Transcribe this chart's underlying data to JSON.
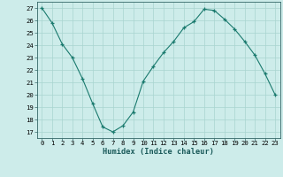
{
  "x": [
    0,
    1,
    2,
    3,
    4,
    5,
    6,
    7,
    8,
    9,
    10,
    11,
    12,
    13,
    14,
    15,
    16,
    17,
    18,
    19,
    20,
    21,
    22,
    23
  ],
  "y": [
    27,
    25.8,
    24.1,
    23.0,
    21.3,
    19.3,
    17.4,
    17.0,
    17.5,
    18.6,
    21.1,
    22.3,
    23.4,
    24.3,
    25.4,
    25.9,
    26.9,
    26.8,
    26.1,
    25.3,
    24.3,
    23.2,
    21.7,
    20.0
  ],
  "line_color": "#1a7a6e",
  "marker": "+",
  "bg_color": "#cdecea",
  "grid_color": "#a8d5d0",
  "xlabel": "Humidex (Indice chaleur)",
  "ylabel_ticks": [
    17,
    18,
    19,
    20,
    21,
    22,
    23,
    24,
    25,
    26,
    27
  ],
  "ylim": [
    16.5,
    27.5
  ],
  "xlim": [
    -0.5,
    23.5
  ],
  "tick_fontsize": 5.2,
  "xlabel_fontsize": 6.2
}
